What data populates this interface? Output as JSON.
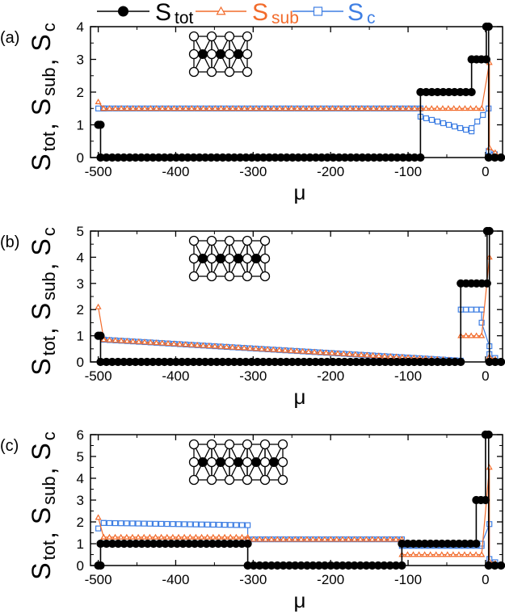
{
  "colors": {
    "tot": "#000000",
    "sub": "#f26b2b",
    "c": "#3f7fe3"
  },
  "legend": [
    {
      "key": "tot",
      "symbol": "S",
      "sub": "tot",
      "marker": "circle"
    },
    {
      "key": "sub",
      "symbol": "S",
      "sub": "sub",
      "marker": "triangle"
    },
    {
      "key": "c",
      "symbol": "S",
      "sub": "c",
      "marker": "square"
    }
  ],
  "ylabel": {
    "parts": [
      {
        "s": "S",
        "sub": "tot"
      },
      {
        "s": "S",
        "sub": "sub"
      },
      {
        "s": "S",
        "sub": "c"
      }
    ],
    "sep": ","
  },
  "chart_data": [
    {
      "type": "line",
      "panel_label": "(a)",
      "xlabel": "μ",
      "xlim": [
        -510,
        22
      ],
      "ylim": [
        0,
        4
      ],
      "xticks": [
        -500,
        -400,
        -300,
        -200,
        -100,
        0
      ],
      "yticks": [
        0,
        1,
        2,
        3,
        4
      ],
      "xtick_labels": [
        "-500",
        "-400",
        "-300",
        "-200",
        "-100",
        "0"
      ],
      "ytick_labels": [
        "0",
        "1",
        "2",
        "3",
        "4"
      ],
      "inset_lattice_columns": 3,
      "series": [
        {
          "name": "S_tot",
          "key": "tot",
          "segments": [
            {
              "x_start": -500,
              "x_end": -497,
              "y": 1.0
            },
            {
              "x_start": -497,
              "x_end": -84,
              "y": 0.0
            },
            {
              "x_start": -84,
              "x_end": -18,
              "y": 2.0
            },
            {
              "x_start": -18,
              "x_end": 1,
              "y": 3.0
            },
            {
              "x_start": 1,
              "x_end": 4,
              "y": 4.0
            },
            {
              "x_start": 4,
              "x_end": 20,
              "y": 0.0
            }
          ]
        },
        {
          "name": "S_sub",
          "key": "sub",
          "segments": [
            {
              "x_start": -500,
              "x_end": -493,
              "y_start": 1.7,
              "y_end": 1.5
            },
            {
              "x_start": -493,
              "x_end": -84,
              "y": 1.5
            },
            {
              "x_start": -84,
              "x_end": -5,
              "y": 1.5
            },
            {
              "x_start": -5,
              "x_end": 5,
              "y_start": 1.5,
              "y_end": 2.9
            },
            {
              "x_start": 5,
              "x_end": 20,
              "y_start": 0.3,
              "y_end": 0.0
            }
          ]
        },
        {
          "name": "S_c",
          "key": "c",
          "segments": [
            {
              "x_start": -500,
              "x_end": -493,
              "y_start": 1.5,
              "y_end": 1.5
            },
            {
              "x_start": -493,
              "x_end": -84,
              "y": 1.5
            },
            {
              "x_start": -84,
              "x_end": -18,
              "y_start": 1.25,
              "y_end": 0.8
            },
            {
              "x_start": -18,
              "x_end": 4,
              "y_start": 0.9,
              "y_end": 1.5
            },
            {
              "x_start": 4,
              "x_end": 20,
              "y_start": 0.2,
              "y_end": 0.0
            }
          ]
        }
      ]
    },
    {
      "type": "line",
      "panel_label": "(b)",
      "xlabel": "μ",
      "xlim": [
        -510,
        22
      ],
      "ylim": [
        0,
        5
      ],
      "xticks": [
        -500,
        -400,
        -300,
        -200,
        -100,
        0
      ],
      "yticks": [
        0,
        1,
        2,
        3,
        4,
        5
      ],
      "xtick_labels": [
        "-500",
        "-400",
        "-300",
        "-200",
        "-100",
        "0"
      ],
      "ytick_labels": [
        "0",
        "1",
        "2",
        "3",
        "4",
        "5"
      ],
      "inset_lattice_columns": 4,
      "series": [
        {
          "name": "S_tot",
          "key": "tot",
          "segments": [
            {
              "x_start": -500,
              "x_end": -497,
              "y": 1.0
            },
            {
              "x_start": -497,
              "x_end": -32,
              "y": 0.0
            },
            {
              "x_start": -32,
              "x_end": 2,
              "y": 3.0
            },
            {
              "x_start": 2,
              "x_end": 5,
              "y": 5.0
            },
            {
              "x_start": 5,
              "x_end": 20,
              "y": 0.0
            }
          ]
        },
        {
          "name": "S_sub",
          "key": "sub",
          "segments": [
            {
              "x_start": -500,
              "x_end": -493,
              "y_start": 2.1,
              "y_end": 0.9
            },
            {
              "x_start": -493,
              "x_end": -32,
              "y_start": 0.85,
              "y_end": 0.05
            },
            {
              "x_start": -32,
              "x_end": -5,
              "y": 1.0
            },
            {
              "x_start": -5,
              "x_end": 5,
              "y_start": 1.0,
              "y_end": 4.0
            },
            {
              "x_start": 5,
              "x_end": 20,
              "y_start": 0.2,
              "y_end": 0.0
            }
          ]
        },
        {
          "name": "S_c",
          "key": "c",
          "segments": [
            {
              "x_start": -500,
              "x_end": -493,
              "y_start": 1.0,
              "y_end": 0.85
            },
            {
              "x_start": -493,
              "x_end": -32,
              "y_start": 0.85,
              "y_end": 0.05
            },
            {
              "x_start": -32,
              "x_end": -5,
              "y": 2.0
            },
            {
              "x_start": -5,
              "x_end": 5,
              "y_start": 1.5,
              "y_end": 0.6
            },
            {
              "x_start": 5,
              "x_end": 20,
              "y_start": 0.3,
              "y_end": 0.0
            }
          ]
        }
      ]
    },
    {
      "type": "line",
      "panel_label": "(c)",
      "xlabel": "μ",
      "xlim": [
        -510,
        22
      ],
      "ylim": [
        0,
        6
      ],
      "xticks": [
        -500,
        -400,
        -300,
        -200,
        -100,
        0
      ],
      "yticks": [
        0,
        1,
        2,
        3,
        4,
        5,
        6
      ],
      "xtick_labels": [
        "-500",
        "-400",
        "-300",
        "-200",
        "-100",
        "0"
      ],
      "ytick_labels": [
        "0",
        "1",
        "2",
        "3",
        "4",
        "5",
        "6"
      ],
      "inset_lattice_columns": 5,
      "series": [
        {
          "name": "S_tot",
          "key": "tot",
          "segments": [
            {
              "x_start": -500,
              "x_end": -497,
              "y": 0.0
            },
            {
              "x_start": -497,
              "x_end": -307,
              "y": 1.0
            },
            {
              "x_start": -307,
              "x_end": -108,
              "y": 0.0
            },
            {
              "x_start": -108,
              "x_end": -12,
              "y": 1.0
            },
            {
              "x_start": -12,
              "x_end": 0,
              "y": 3.0
            },
            {
              "x_start": 0,
              "x_end": 4,
              "y": 6.0
            },
            {
              "x_start": 4,
              "x_end": 20,
              "y": 0.0
            }
          ]
        },
        {
          "name": "S_sub",
          "key": "sub",
          "segments": [
            {
              "x_start": -500,
              "x_end": -493,
              "y_start": 2.2,
              "y_end": 1.3
            },
            {
              "x_start": -493,
              "x_end": -307,
              "y": 1.3
            },
            {
              "x_start": -307,
              "x_end": -108,
              "y": 1.2
            },
            {
              "x_start": -108,
              "x_end": -5,
              "y": 0.5
            },
            {
              "x_start": -5,
              "x_end": 5,
              "y_start": 0.5,
              "y_end": 4.5
            },
            {
              "x_start": 5,
              "x_end": 20,
              "y_start": 0.2,
              "y_end": 0.0
            }
          ]
        },
        {
          "name": "S_c",
          "key": "c",
          "segments": [
            {
              "x_start": -500,
              "x_end": -493,
              "y_start": 1.7,
              "y_end": 1.95
            },
            {
              "x_start": -493,
              "x_end": -307,
              "y_start": 1.95,
              "y_end": 1.85
            },
            {
              "x_start": -307,
              "x_end": -108,
              "y": 1.2
            },
            {
              "x_start": -108,
              "x_end": -5,
              "y": 0.9
            },
            {
              "x_start": -5,
              "x_end": 5,
              "y_start": 1.0,
              "y_end": 1.9
            },
            {
              "x_start": 5,
              "x_end": 20,
              "y_start": 0.3,
              "y_end": 0.0
            }
          ]
        }
      ]
    }
  ]
}
